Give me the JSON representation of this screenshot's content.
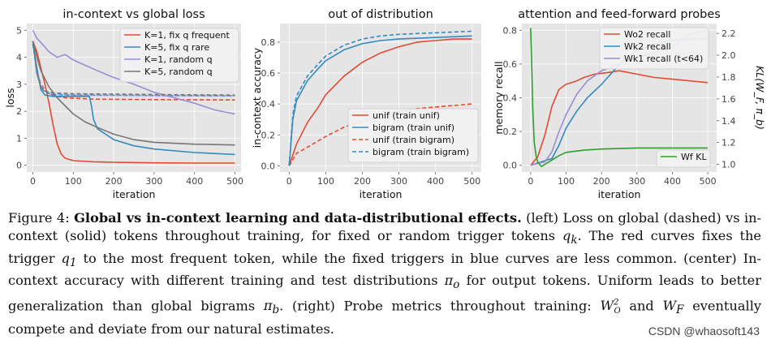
{
  "caption": {
    "figure_label": "Figure 4:",
    "bold_title": "Global vs in-context learning and data-distributional effects.",
    "seg1": "(left) Loss on global (dashed) vs in-context (solid) tokens throughout training, for fixed or random trigger tokens",
    "var_qk": "q",
    "var_qk_sub": "k",
    "seg2": ". The red curves fixes the trigger",
    "var_q1": "q",
    "var_q1_sub": "1",
    "seg3": "to the most frequent token, while the fixed triggers in blue curves are less common. (center) In-context accuracy with different training and test distributions",
    "var_pio": "π",
    "var_pio_sub": "o",
    "seg4": "for output tokens. Uniform leads to better generalization than global bigrams",
    "var_pib": "π",
    "var_pib_sub": "b",
    "seg5": ". (right) Probe metrics throughout training:",
    "var_wo2": "W",
    "var_wo2_sup": "2",
    "var_wo2_sub": "O",
    "seg6": "and",
    "var_wf": "W",
    "var_wf_sub": "F",
    "seg7": "eventually compete and deviate from our natural estimates."
  },
  "watermark": "CSDN @whaosoft143",
  "chart_data": [
    {
      "type": "line",
      "title": "in-context vs global loss",
      "xlabel": "iteration",
      "ylabel": "loss",
      "xlim": [
        -15,
        515
      ],
      "ylim": [
        -0.25,
        5.25
      ],
      "xticks": [
        0,
        100,
        200,
        300,
        400,
        500
      ],
      "yticks": [
        0,
        1,
        2,
        3,
        4,
        5
      ],
      "legend_position": "top-right",
      "series": [
        {
          "name": "K=1, fix q frequent",
          "color": "#e24a33",
          "style": "solid",
          "legend": true,
          "x": [
            0,
            10,
            20,
            30,
            40,
            50,
            60,
            70,
            80,
            100,
            150,
            200,
            300,
            400,
            500
          ],
          "y": [
            4.6,
            4.2,
            3.6,
            3.0,
            2.3,
            1.5,
            0.8,
            0.42,
            0.26,
            0.17,
            0.13,
            0.11,
            0.09,
            0.08,
            0.08
          ]
        },
        {
          "name": "K=1, fix q frequent (global)",
          "color": "#e24a33",
          "style": "dashed",
          "legend": false,
          "x": [
            0,
            10,
            20,
            30,
            40,
            60,
            80,
            150,
            300,
            500
          ],
          "y": [
            4.6,
            3.5,
            3.0,
            2.8,
            2.65,
            2.55,
            2.5,
            2.45,
            2.43,
            2.42
          ]
        },
        {
          "name": "K=5, fix q rare",
          "color": "#348abd",
          "style": "solid",
          "legend": true,
          "x": [
            0,
            10,
            20,
            30,
            50,
            80,
            120,
            140,
            145,
            150,
            160,
            200,
            250,
            300,
            400,
            500
          ],
          "y": [
            4.5,
            3.6,
            2.8,
            2.6,
            2.55,
            2.55,
            2.55,
            2.55,
            2.2,
            1.7,
            1.35,
            0.95,
            0.72,
            0.6,
            0.47,
            0.4
          ]
        },
        {
          "name": "K=5, fix q rare (global)",
          "color": "#348abd",
          "style": "dashed",
          "legend": false,
          "x": [
            0,
            10,
            20,
            30,
            50,
            100,
            300,
            500
          ],
          "y": [
            4.5,
            3.4,
            2.9,
            2.7,
            2.62,
            2.6,
            2.58,
            2.57
          ]
        },
        {
          "name": "K=1, random q",
          "color": "#988ed5",
          "style": "solid",
          "legend": true,
          "x": [
            0,
            10,
            20,
            40,
            60,
            80,
            100,
            130,
            160,
            200,
            250,
            300,
            350,
            400,
            450,
            500
          ],
          "y": [
            5.0,
            4.7,
            4.55,
            4.2,
            4.0,
            4.1,
            3.9,
            3.7,
            3.5,
            3.25,
            3.0,
            2.7,
            2.5,
            2.3,
            2.05,
            1.9
          ]
        },
        {
          "name": "K=1, random q (global)",
          "color": "#988ed5",
          "style": "dashed",
          "legend": false,
          "x": [
            0,
            10,
            20,
            30,
            50,
            100,
            300,
            500
          ],
          "y": [
            4.6,
            3.5,
            3.0,
            2.75,
            2.65,
            2.6,
            2.58,
            2.57
          ]
        },
        {
          "name": "K=5, random q",
          "color": "#777777",
          "style": "solid",
          "legend": true,
          "x": [
            0,
            10,
            20,
            40,
            60,
            80,
            100,
            130,
            160,
            200,
            250,
            300,
            400,
            500
          ],
          "y": [
            4.6,
            4.0,
            3.5,
            2.9,
            2.5,
            2.2,
            1.9,
            1.6,
            1.4,
            1.15,
            0.95,
            0.85,
            0.78,
            0.75
          ]
        },
        {
          "name": "K=5, random q (global)",
          "color": "#777777",
          "style": "dashed",
          "legend": false,
          "x": [
            0,
            10,
            20,
            30,
            50,
            100,
            300,
            500
          ],
          "y": [
            4.6,
            3.4,
            2.9,
            2.75,
            2.68,
            2.65,
            2.62,
            2.6
          ]
        }
      ]
    },
    {
      "type": "line",
      "title": "out of distribution",
      "xlabel": "iteration",
      "ylabel": "in-context accuracy",
      "xlim": [
        -25,
        525
      ],
      "ylim": [
        -0.04,
        0.92
      ],
      "xticks": [
        0,
        100,
        200,
        300,
        400,
        500
      ],
      "yticks": [
        0.0,
        0.2,
        0.4,
        0.6,
        0.8
      ],
      "legend_position": "bottom-right",
      "series": [
        {
          "name": "unif (train unif)",
          "color": "#e24a33",
          "style": "solid",
          "legend": true,
          "x": [
            0,
            20,
            50,
            80,
            100,
            150,
            200,
            250,
            300,
            350,
            400,
            450,
            500
          ],
          "y": [
            0.0,
            0.14,
            0.28,
            0.38,
            0.46,
            0.58,
            0.67,
            0.73,
            0.77,
            0.8,
            0.81,
            0.82,
            0.82
          ]
        },
        {
          "name": "bigram (train unif)",
          "color": "#348abd",
          "style": "solid",
          "legend": true,
          "x": [
            0,
            10,
            20,
            50,
            80,
            100,
            150,
            200,
            250,
            300,
            400,
            500
          ],
          "y": [
            0.0,
            0.3,
            0.42,
            0.55,
            0.63,
            0.68,
            0.75,
            0.79,
            0.81,
            0.82,
            0.83,
            0.84
          ]
        },
        {
          "name": "unif (train bigram)",
          "color": "#e24a33",
          "style": "dashed",
          "legend": true,
          "x": [
            0,
            20,
            50,
            100,
            150,
            200,
            250,
            300,
            350,
            400,
            450,
            500
          ],
          "y": [
            0.0,
            0.08,
            0.12,
            0.19,
            0.25,
            0.29,
            0.32,
            0.35,
            0.37,
            0.38,
            0.39,
            0.4
          ]
        },
        {
          "name": "bigram (train bigram)",
          "color": "#348abd",
          "style": "dashed",
          "legend": true,
          "x": [
            0,
            10,
            20,
            50,
            80,
            100,
            150,
            200,
            250,
            300,
            400,
            500
          ],
          "y": [
            0.0,
            0.33,
            0.45,
            0.58,
            0.66,
            0.71,
            0.78,
            0.82,
            0.84,
            0.85,
            0.86,
            0.87
          ]
        }
      ]
    },
    {
      "type": "line",
      "title": "attention and feed-forward probes",
      "xlabel": "iteration",
      "ylabel": "memory recall",
      "ylabel_right": "KL(W_F, π_b)",
      "xlim": [
        -25,
        525
      ],
      "ylim": [
        -0.04,
        0.84
      ],
      "ylim_right": [
        0.93,
        2.29
      ],
      "xticks": [
        0,
        100,
        200,
        300,
        400,
        500
      ],
      "yticks": [
        0.0,
        0.2,
        0.4,
        0.6,
        0.8
      ],
      "yticks_right": [
        1.0,
        1.2,
        1.4,
        1.6,
        1.8,
        2.0,
        2.2
      ],
      "legend_position": "top-right",
      "legend2_position": "bottom-right",
      "series": [
        {
          "name": "Wo2 recall",
          "color": "#e24a33",
          "style": "solid",
          "axis": "left",
          "legend": true,
          "x": [
            0,
            20,
            40,
            60,
            80,
            100,
            130,
            150,
            180,
            220,
            250,
            300,
            350,
            400,
            450,
            500
          ],
          "y": [
            0.0,
            0.05,
            0.18,
            0.35,
            0.45,
            0.48,
            0.5,
            0.52,
            0.54,
            0.55,
            0.56,
            0.54,
            0.52,
            0.51,
            0.5,
            0.49
          ]
        },
        {
          "name": "Wk2 recall",
          "color": "#348abd",
          "style": "solid",
          "axis": "left",
          "legend": true,
          "x": [
            0,
            30,
            60,
            80,
            100,
            130,
            160,
            200,
            230,
            260,
            300,
            350,
            400,
            450,
            500
          ],
          "y": [
            0.0,
            0.02,
            0.04,
            0.12,
            0.22,
            0.32,
            0.4,
            0.48,
            0.55,
            0.62,
            0.68,
            0.72,
            0.74,
            0.75,
            0.75
          ]
        },
        {
          "name": "Wk1 recall (t<64)",
          "color": "#988ed5",
          "style": "solid",
          "axis": "left",
          "legend": true,
          "x": [
            0,
            40,
            60,
            80,
            100,
            130,
            160,
            200,
            250,
            300,
            400,
            450,
            500
          ],
          "y": [
            0.0,
            0.02,
            0.08,
            0.2,
            0.3,
            0.42,
            0.5,
            0.56,
            0.6,
            0.64,
            0.7,
            0.78,
            0.8
          ]
        },
        {
          "name": "Wf KL",
          "color": "#2ca02c",
          "style": "solid",
          "axis": "right",
          "legend": true,
          "x": [
            0,
            3,
            6,
            10,
            15,
            20,
            30,
            40,
            60,
            80,
            100,
            150,
            200,
            300,
            400,
            500
          ],
          "y": [
            2.25,
            1.9,
            1.5,
            1.2,
            1.08,
            1.02,
            0.98,
            1.0,
            1.04,
            1.08,
            1.11,
            1.13,
            1.14,
            1.15,
            1.15,
            1.15
          ]
        }
      ]
    }
  ]
}
